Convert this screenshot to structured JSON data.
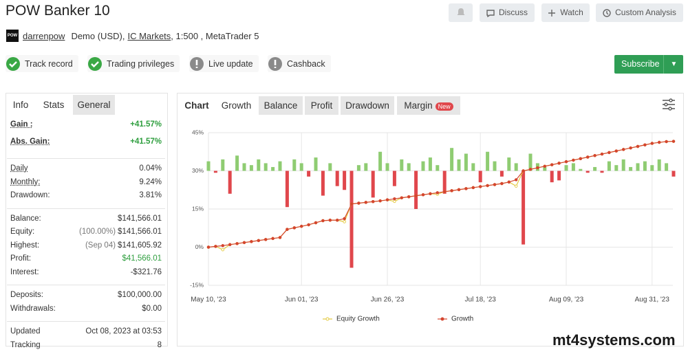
{
  "header": {
    "title": "POW Banker 10",
    "logo": "POW",
    "user": "darrenpow",
    "account": "Demo (USD),",
    "broker": "IC Markets",
    "details": ", 1:500 , MetaTrader 5"
  },
  "actions": [
    "Discuss",
    "Watch",
    "Custom Analysis"
  ],
  "badges": [
    {
      "label": "Track record",
      "ok": true
    },
    {
      "label": "Trading privileges",
      "ok": true
    },
    {
      "label": "Live update",
      "ok": false
    },
    {
      "label": "Cashback",
      "ok": false
    }
  ],
  "subscribe": "Subscribe",
  "left_tabs": [
    "Info",
    "Stats",
    "General"
  ],
  "stats": [
    [
      {
        "label": "Gain :",
        "value": "+41.57%",
        "value_color": "#2e9e3e",
        "underline": true
      },
      {
        "label": "Abs. Gain:",
        "value": "+41.57%",
        "value_color": "#2e9e3e",
        "underline": true
      }
    ],
    [
      {
        "label": "Daily",
        "value": "0.04%",
        "underline": true
      },
      {
        "label": "Monthly:",
        "value": "9.24%",
        "underline": true
      },
      {
        "label": "Drawdown:",
        "value": "3.81%"
      }
    ],
    [
      {
        "label": "Balance:",
        "value": "$141,566.01"
      },
      {
        "label": "Equity:",
        "note": "(100.00%)",
        "value": "$141,566.01"
      },
      {
        "label": "Highest:",
        "note": "(Sep 04)",
        "value": "$141,605.92"
      },
      {
        "label": "Profit:",
        "value": "$41,566.01",
        "value_color": "#2e9e3e"
      },
      {
        "label": "Interest:",
        "value": "-$321.76"
      }
    ],
    [
      {
        "label": "Deposits:",
        "value": "$100,000.00"
      },
      {
        "label": "Withdrawals:",
        "value": "$0.00"
      }
    ],
    [
      {
        "label": "Updated",
        "value": "Oct 08, 2023 at 03:53"
      },
      {
        "label": "Tracking",
        "value": "8"
      }
    ]
  ],
  "chart_tabs": [
    "Chart",
    "Growth",
    "Balance",
    "Profit",
    "Drawdown",
    "Margin"
  ],
  "new_badge": "New",
  "watermark": "mt4systems.com",
  "chart_data": {
    "type": "combo",
    "categories": [
      "May 10, '23",
      null,
      null,
      null,
      null,
      null,
      null,
      null,
      null,
      null,
      null,
      null,
      null,
      "Jun 01, '23",
      null,
      null,
      null,
      null,
      null,
      null,
      null,
      null,
      null,
      null,
      null,
      "Jun 26, '23",
      null,
      null,
      null,
      null,
      null,
      null,
      null,
      null,
      null,
      null,
      null,
      null,
      "Jul 18, '23",
      null,
      null,
      null,
      null,
      null,
      null,
      null,
      null,
      null,
      null,
      null,
      "Aug 09, '23",
      null,
      null,
      null,
      null,
      null,
      null,
      null,
      null,
      null,
      null,
      null,
      "Aug 31, '23",
      null,
      null,
      null
    ],
    "ylim": [
      -15,
      45
    ],
    "yticks": [
      {
        "value": -15,
        "label": "-15%"
      },
      {
        "value": 0,
        "label": "0%"
      },
      {
        "value": 15,
        "label": "15%"
      },
      {
        "value": 30,
        "label": "30%"
      },
      {
        "value": 45,
        "label": "45%"
      }
    ],
    "y2lim": [
      -3,
      1
    ],
    "grid": true,
    "series": [
      {
        "name": "Equity Growth",
        "color": "#e3c93e",
        "values": [
          0,
          0.3,
          -1.0,
          1.0,
          1.4,
          1.8,
          2.2,
          2.6,
          3.0,
          3.4,
          3.8,
          7.0,
          7.6,
          8.2,
          8.8,
          9.6,
          10.4,
          10.6,
          10.6,
          10.0,
          17.0,
          17.3,
          17.6,
          17.9,
          18.2,
          18.6,
          18.0,
          19.4,
          19.8,
          20.2,
          20.6,
          21.0,
          20.8,
          21.8,
          22.2,
          22.6,
          23.0,
          23.4,
          23.8,
          24.2,
          24.6,
          25.0,
          25.6,
          24.0,
          30.0,
          30.6,
          31.2,
          31.8,
          32.4,
          33.0,
          33.6,
          34.2,
          34.8,
          35.4,
          36.0,
          36.6,
          37.2,
          37.8,
          38.4,
          39.0,
          39.6,
          40.2,
          40.8,
          41.2,
          41.5,
          41.6
        ]
      },
      {
        "name": "Growth",
        "color": "#d4452f",
        "values": [
          0,
          0.3,
          0.6,
          1.0,
          1.4,
          1.8,
          2.2,
          2.6,
          3.0,
          3.4,
          3.8,
          7.0,
          7.6,
          8.2,
          8.8,
          9.6,
          10.4,
          10.6,
          10.6,
          11.2,
          17.0,
          17.3,
          17.6,
          17.9,
          18.2,
          18.6,
          19.0,
          19.4,
          19.8,
          20.2,
          20.6,
          21.0,
          21.4,
          21.8,
          22.2,
          22.6,
          23.0,
          23.4,
          23.8,
          24.2,
          24.6,
          25.0,
          25.6,
          26.5,
          30.0,
          30.6,
          31.2,
          31.8,
          32.4,
          33.0,
          33.6,
          34.2,
          34.8,
          35.4,
          36.0,
          36.6,
          37.2,
          37.8,
          38.4,
          39.0,
          39.6,
          40.2,
          40.8,
          41.2,
          41.5,
          41.6
        ]
      }
    ],
    "bars": {
      "axis": "y2",
      "up_color": "#8fcc72",
      "down_color": "#e0474c",
      "values": [
        0.25,
        -0.05,
        0.3,
        -0.6,
        0.4,
        0.2,
        0.15,
        0.3,
        0.2,
        0.1,
        0.25,
        -0.95,
        0.3,
        0.2,
        -0.15,
        0.35,
        -0.65,
        0.2,
        -0.4,
        -0.5,
        -2.54,
        0.15,
        0.2,
        -0.7,
        0.5,
        0.2,
        -0.4,
        0.3,
        0.2,
        -1.0,
        0.25,
        0.35,
        0.15,
        -0.6,
        0.6,
        0.3,
        0.45,
        0.2,
        -0.3,
        0.5,
        0.25,
        -0.15,
        0.35,
        0.2,
        -1.93,
        0.45,
        0.2,
        0.1,
        -0.3,
        -0.25,
        0.15,
        0.2,
        0.05,
        -0.05,
        0.1,
        -0.05,
        0.25,
        0.15,
        0.3,
        0.1,
        0.2,
        0.25,
        0.15,
        0.3,
        0.2,
        -0.15
      ]
    }
  }
}
